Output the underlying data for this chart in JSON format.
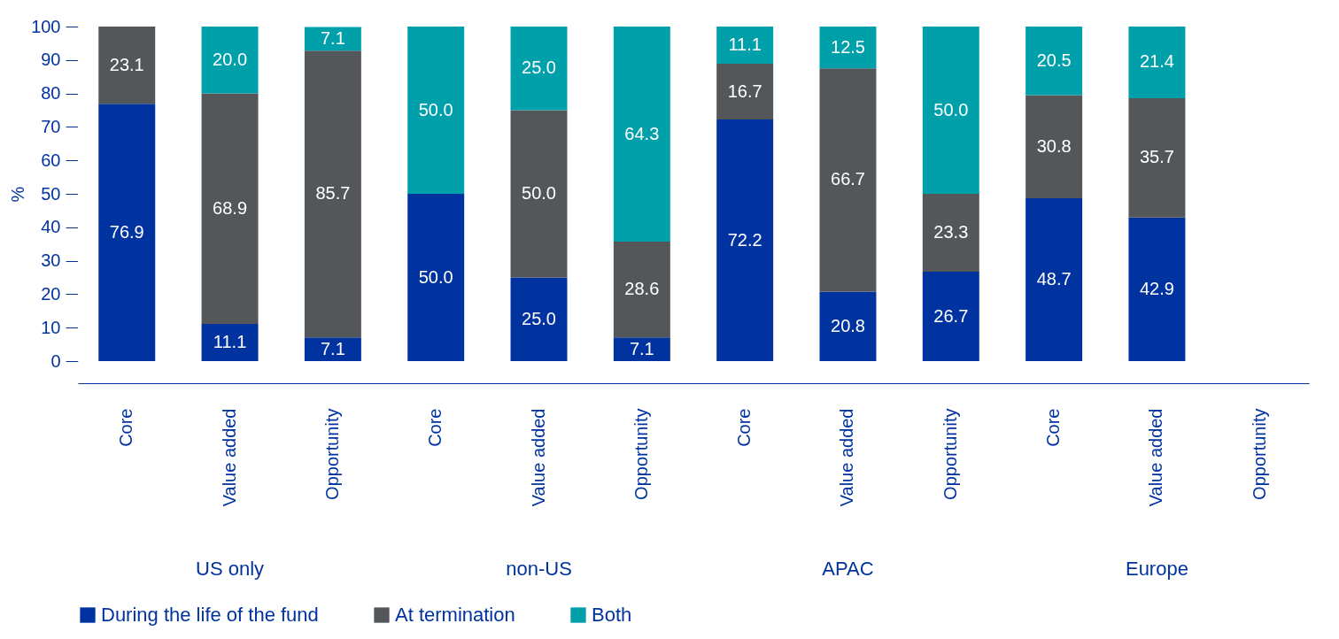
{
  "chart_data": {
    "type": "bar",
    "stacked": true,
    "ylabel": "%",
    "ylim": [
      0,
      100
    ],
    "yticks": [
      0,
      10,
      20,
      30,
      40,
      50,
      60,
      70,
      80,
      90,
      100
    ],
    "grid": false,
    "legend": "bottom",
    "categories": [
      "Core",
      "Value added",
      "Opportunity",
      "Core",
      "Value added",
      "Opportunity",
      "Core",
      "Value added",
      "Opportunity",
      "Core",
      "Value added",
      "Opportunity"
    ],
    "annotations": [
      "US only",
      "non-US",
      "APAC",
      "Europe"
    ],
    "series": [
      {
        "name": "During the life of the fund",
        "color": "#0033a0",
        "values": [
          76.9,
          11.1,
          7.1,
          50.0,
          25.0,
          7.1,
          72.2,
          20.8,
          26.7,
          48.7,
          42.9,
          null
        ],
        "value_labels": [
          "76.9",
          "11.1",
          "7.1",
          "50.0",
          "25.0",
          "7.1",
          "72.2",
          "20.8",
          "26.7",
          "48.7",
          "42.9",
          null
        ]
      },
      {
        "name": "At termination",
        "color": "#54575a",
        "values": [
          23.1,
          68.9,
          85.7,
          null,
          50.0,
          28.6,
          16.7,
          66.7,
          23.3,
          30.8,
          35.7,
          null
        ],
        "value_labels": [
          "23.1",
          "68.9",
          "85.7",
          null,
          "50.0",
          "28.6",
          "16.7",
          "66.7",
          "23.3",
          "30.8",
          "35.7",
          null
        ]
      },
      {
        "name": "Both",
        "color": "#00a0aa",
        "values": [
          null,
          20.0,
          7.1,
          50.0,
          25.0,
          64.3,
          11.1,
          12.5,
          50.0,
          20.5,
          21.4,
          null
        ],
        "value_labels": [
          null,
          "20.0",
          "7.1",
          "50.0",
          "25.0",
          "64.3",
          "11.1",
          "12.5",
          "50.0",
          "20.5",
          "21.4",
          null
        ]
      }
    ]
  }
}
